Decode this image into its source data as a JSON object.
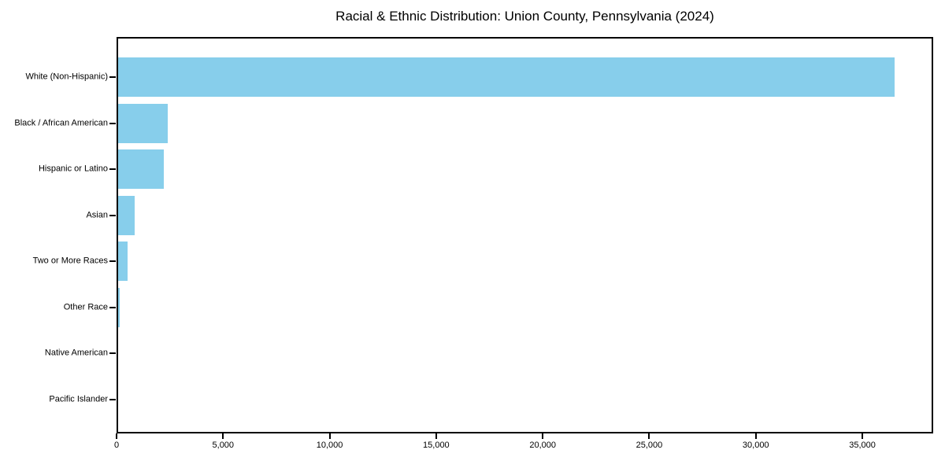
{
  "title": "Racial & Ethnic Distribution: Union County, Pennsylvania (2024)",
  "chart_data": {
    "type": "bar",
    "orientation": "horizontal",
    "title": "Racial & Ethnic Distribution: Union County, Pennsylvania (2024)",
    "categories": [
      "White (Non-Hispanic)",
      "Black / African American",
      "Hispanic or Latino",
      "Asian",
      "Two or More Races",
      "Other Race",
      "Native American",
      "Pacific Islander"
    ],
    "values": [
      36500,
      2400,
      2200,
      840,
      500,
      150,
      50,
      20
    ],
    "xlabel": "",
    "ylabel": "",
    "xlim": [
      0,
      38325
    ],
    "x_ticks": [
      0,
      5000,
      10000,
      15000,
      20000,
      25000,
      30000,
      35000
    ],
    "x_tick_labels": [
      "0",
      "5,000",
      "10,000",
      "15,000",
      "20,000",
      "25,000",
      "30,000",
      "35,000"
    ],
    "bar_color": "#87CEEB",
    "frame_color": "#000000",
    "grid": false,
    "legend_position": "none"
  }
}
